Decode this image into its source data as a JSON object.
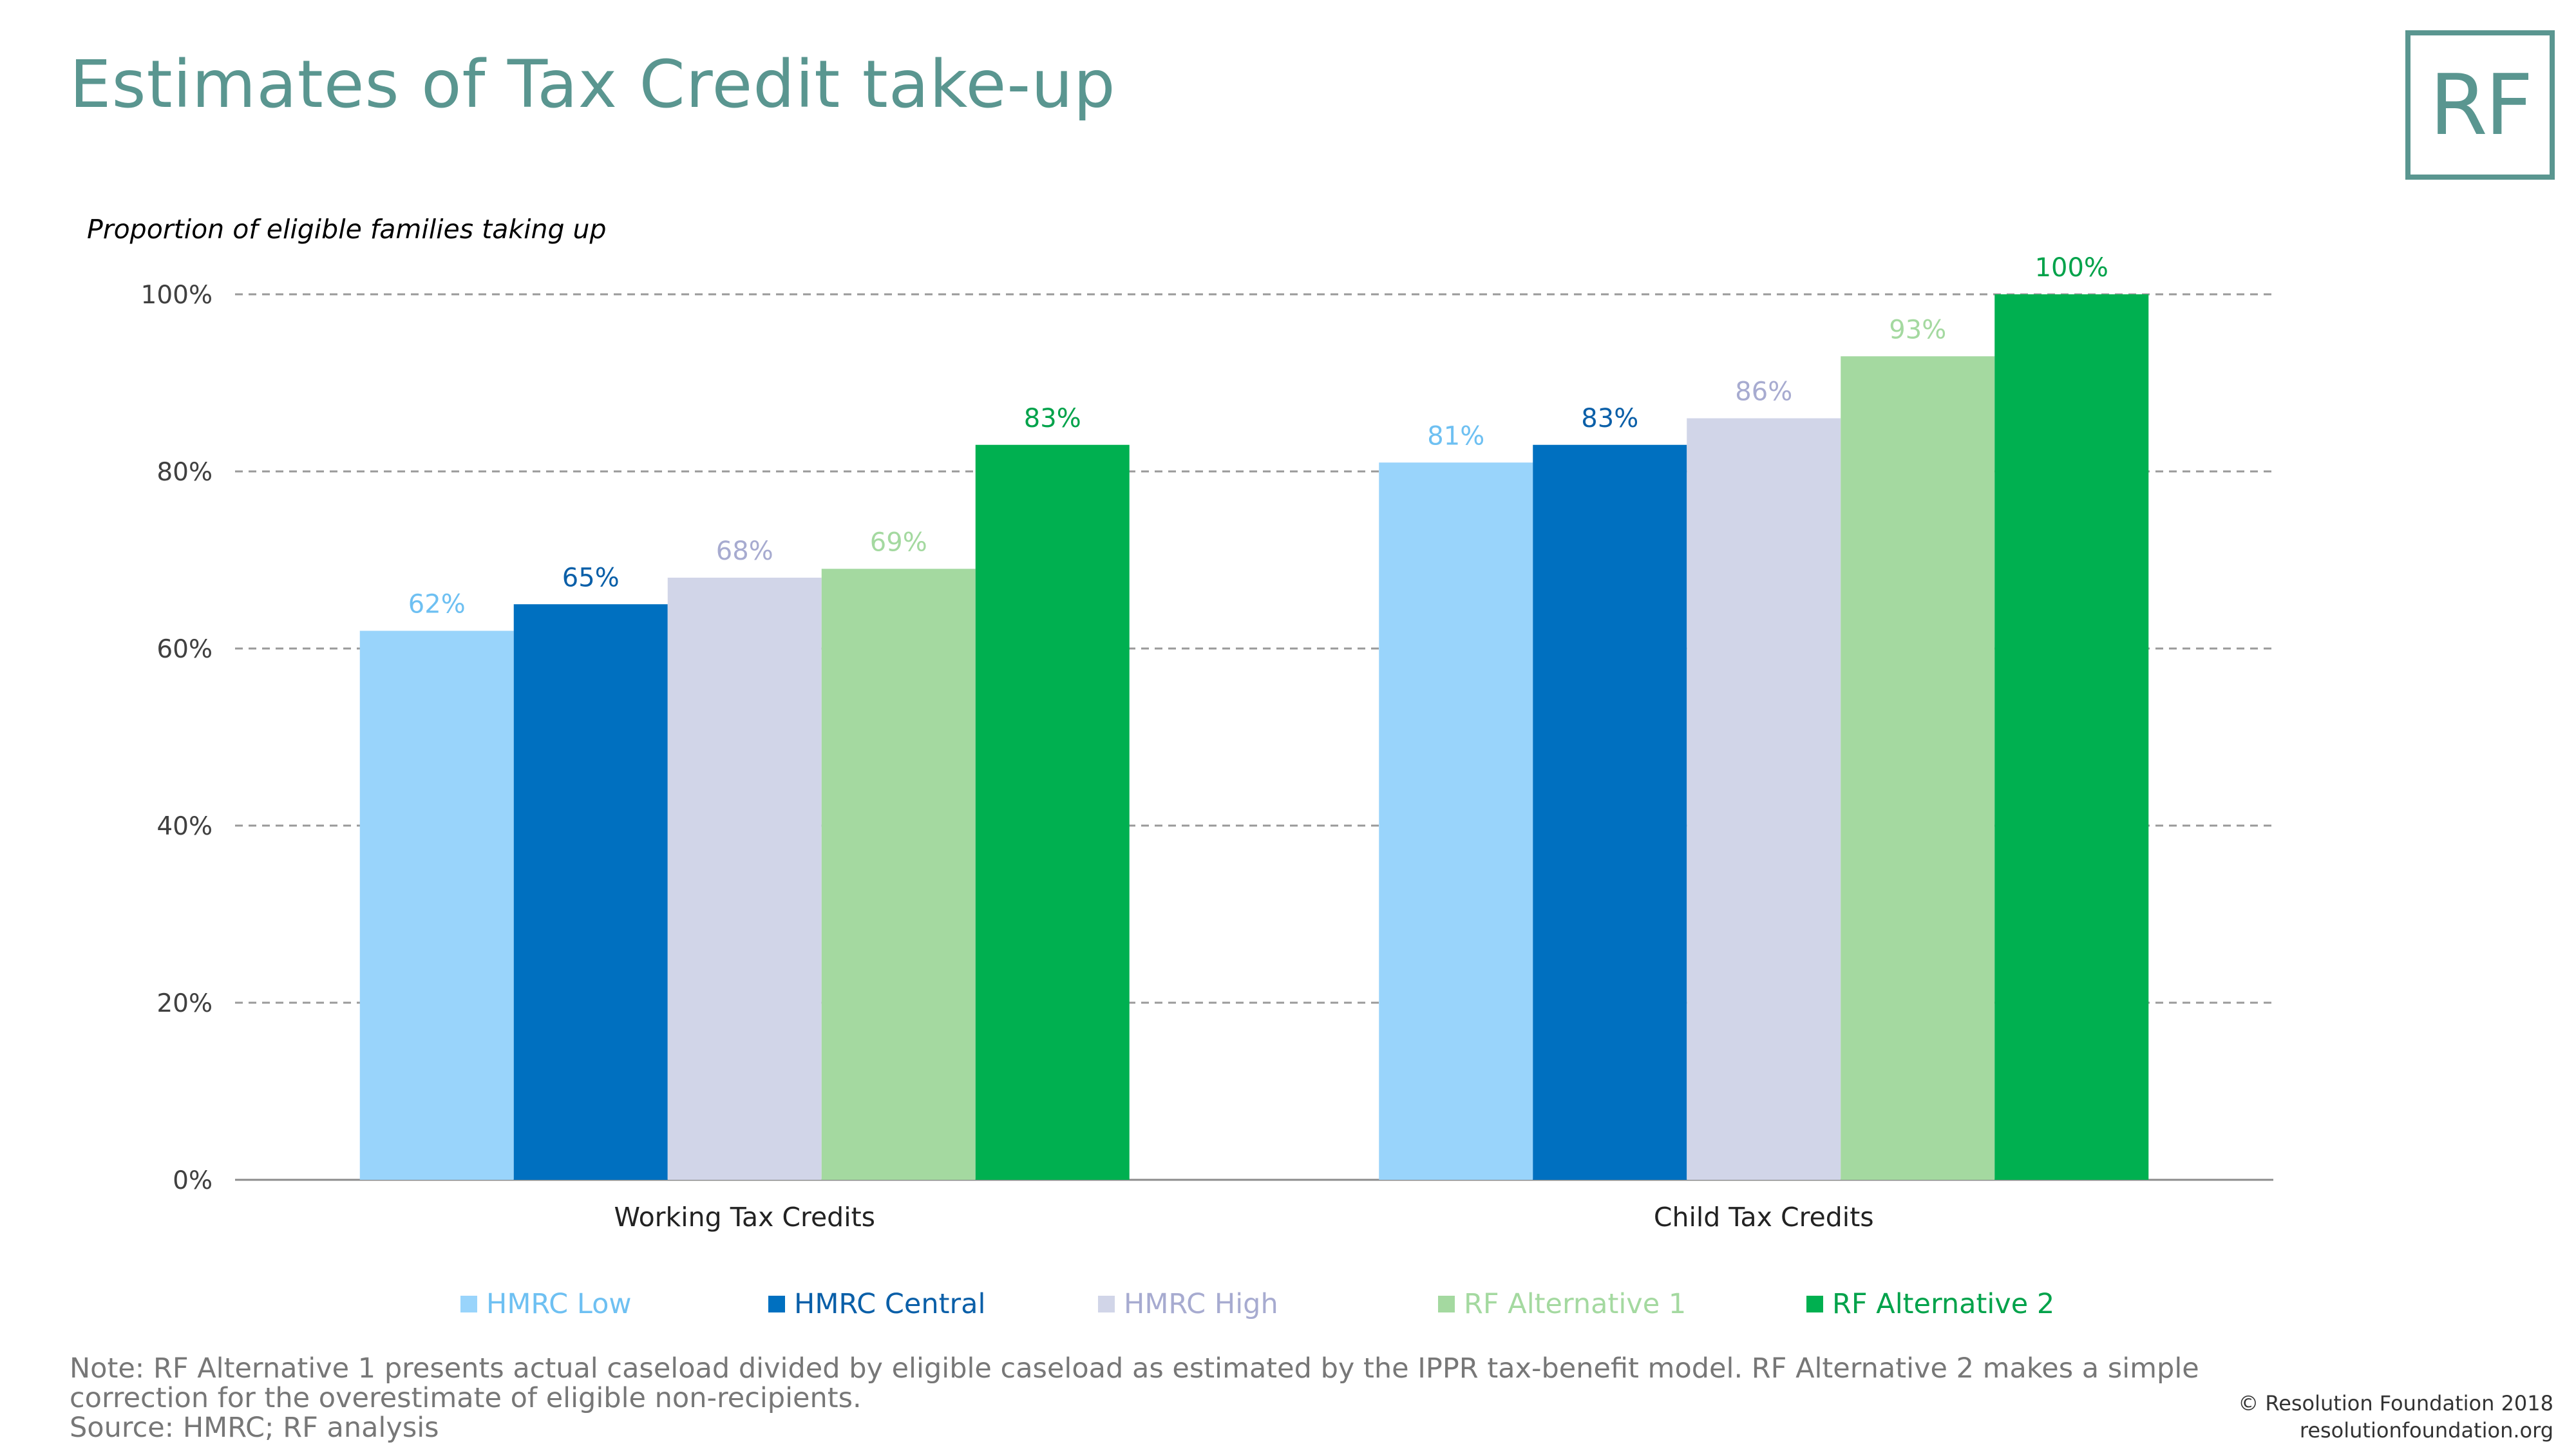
{
  "header": {
    "title": "Estimates of Tax Credit take-up",
    "logo_text": "RF"
  },
  "chart_data": {
    "type": "bar",
    "title": "Estimates of Tax Credit take-up",
    "ylabel": "Proportion of eligible families taking up",
    "xlabel": "",
    "ylim": [
      0,
      100
    ],
    "yticks": [
      0,
      20,
      40,
      60,
      80,
      100
    ],
    "ytick_labels": [
      "0%",
      "20%",
      "40%",
      "60%",
      "80%",
      "100%"
    ],
    "categories": [
      "Working Tax Credits",
      "Child Tax Credits"
    ],
    "grid": true,
    "legend_position": "bottom",
    "series": [
      {
        "name": "HMRC Low",
        "values": [
          62,
          81
        ],
        "labels": [
          "62%",
          "81%"
        ],
        "color": "#99d4fb",
        "label_color": "#6ec0f2"
      },
      {
        "name": "HMRC Central",
        "values": [
          65,
          83
        ],
        "labels": [
          "65%",
          "83%"
        ],
        "color": "#0070c0",
        "label_color": "#0a5fa8"
      },
      {
        "name": "HMRC High",
        "values": [
          68,
          86
        ],
        "labels": [
          "68%",
          "86%"
        ],
        "color": "#d1d5e8",
        "label_color": "#a7abd0"
      },
      {
        "name": "RF Alternative 1",
        "values": [
          69,
          93
        ],
        "labels": [
          "69%",
          "93%"
        ],
        "color": "#a4d9a0",
        "label_color": "#a4d9a0"
      },
      {
        "name": "RF Alternative 2",
        "values": [
          83,
          100
        ],
        "labels": [
          "83%",
          "100%"
        ],
        "color": "#00b050",
        "label_color": "#00a24a"
      }
    ]
  },
  "footer": {
    "note_lines": [
      "Note: RF Alternative 1 presents actual caseload divided by eligible caseload as estimated by the IPPR tax-benefit model. RF Alternative 2 makes a simple",
      "correction for the overestimate of eligible non-recipients."
    ],
    "source": "Source: HMRC; RF analysis",
    "copyright": "© Resolution Foundation 2018",
    "website": "resolutionfoundation.org"
  }
}
